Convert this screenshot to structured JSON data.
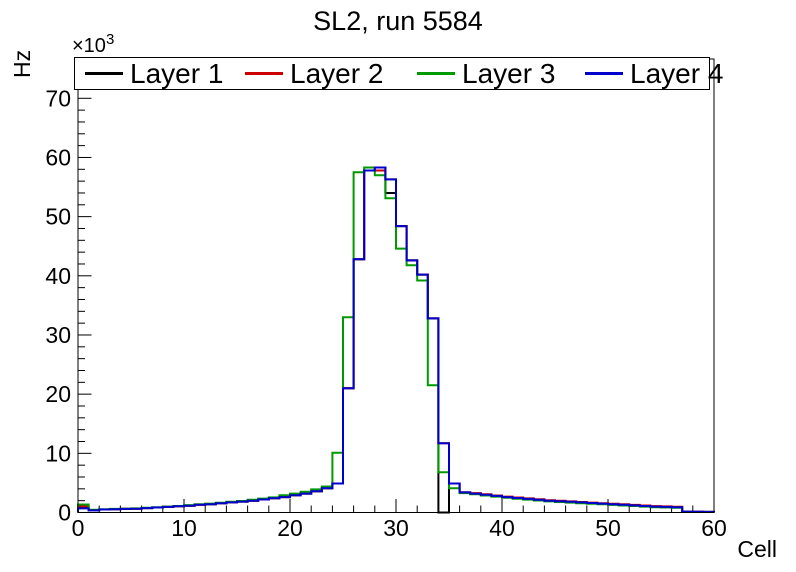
{
  "title": "SL2, run 5584",
  "axes": {
    "y_title": "Hz",
    "x_title": "Cell",
    "y_multiplier_base": "×10",
    "y_multiplier_exp": "3"
  },
  "legend": {
    "items": [
      {
        "label": "Layer 1",
        "color": "#000000"
      },
      {
        "label": "Layer 2",
        "color": "#cc0000"
      },
      {
        "label": "Layer 3",
        "color": "#009900"
      },
      {
        "label": "Layer 4",
        "color": "#0000cc"
      }
    ]
  },
  "chart_data": {
    "type": "step-histogram",
    "title": "SL2, run 5584",
    "xlabel": "Cell",
    "ylabel": "Hz",
    "xlim": [
      0,
      60
    ],
    "ylim": [
      0,
      76640
    ],
    "bin_width": 1,
    "grid": false,
    "legend_position": "top",
    "x_tick_values": [
      0,
      10,
      20,
      30,
      40,
      50,
      60
    ],
    "x_tick_labels": [
      "0",
      "10",
      "20",
      "30",
      "40",
      "50",
      "60"
    ],
    "x_minor_step": 2,
    "y_tick_values": [
      0,
      10000,
      20000,
      30000,
      40000,
      50000,
      60000,
      70000
    ],
    "y_tick_labels": [
      "0",
      "10",
      "20",
      "30",
      "40",
      "50",
      "60",
      "70"
    ],
    "y_minor_step": 2000,
    "series": [
      {
        "name": "Layer 1",
        "color": "#000000",
        "values": [
          1000,
          400,
          500,
          550,
          600,
          650,
          750,
          850,
          950,
          1050,
          1150,
          1300,
          1400,
          1550,
          1700,
          1850,
          2000,
          2200,
          2400,
          2600,
          2900,
          3200,
          3600,
          4100,
          4900,
          21000,
          42800,
          57800,
          58300,
          54000,
          48400,
          42600,
          40200,
          32800,
          0,
          4900,
          3400,
          3200,
          3000,
          2800,
          2600,
          2450,
          2300,
          2150,
          2000,
          1900,
          1800,
          1700,
          1600,
          1500,
          1400,
          1300,
          1200,
          1100,
          1000,
          950,
          900,
          150,
          120,
          100
        ]
      },
      {
        "name": "Layer 2",
        "color": "#cc0000",
        "values": [
          1050,
          400,
          500,
          550,
          600,
          650,
          750,
          850,
          950,
          1050,
          1150,
          1300,
          1400,
          1550,
          1700,
          1850,
          2000,
          2200,
          2400,
          2600,
          2900,
          3200,
          3600,
          4100,
          4900,
          21000,
          42800,
          57800,
          57800,
          56300,
          48400,
          42600,
          40200,
          32800,
          11700,
          4900,
          3400,
          3280,
          3080,
          2880,
          2680,
          2530,
          2380,
          2230,
          2080,
          1980,
          1880,
          1780,
          1680,
          1580,
          1480,
          1380,
          1280,
          1180,
          1080,
          1030,
          980,
          150,
          120,
          100
        ]
      },
      {
        "name": "Layer 3",
        "color": "#009900",
        "values": [
          1350,
          450,
          550,
          600,
          650,
          700,
          800,
          900,
          1000,
          1100,
          1250,
          1400,
          1500,
          1650,
          1800,
          1950,
          2150,
          2350,
          2550,
          2900,
          3200,
          3500,
          3900,
          4400,
          10100,
          33000,
          57500,
          58300,
          57000,
          53100,
          44600,
          41800,
          39200,
          21500,
          6800,
          4100,
          3280,
          3080,
          2880,
          2680,
          2480,
          2330,
          2180,
          2030,
          1880,
          1780,
          1680,
          1580,
          1480,
          1380,
          1280,
          1180,
          1100,
          1000,
          900,
          850,
          800,
          100,
          80,
          80
        ]
      },
      {
        "name": "Layer 4",
        "color": "#0000cc",
        "values": [
          700,
          350,
          500,
          550,
          600,
          650,
          750,
          850,
          950,
          1050,
          1150,
          1300,
          1400,
          1550,
          1700,
          1850,
          2000,
          2200,
          2400,
          2600,
          2900,
          3200,
          3600,
          4100,
          4900,
          21000,
          42800,
          57800,
          58300,
          56300,
          48400,
          42600,
          40200,
          32800,
          11700,
          4900,
          3400,
          3200,
          3000,
          2800,
          2600,
          2450,
          2300,
          2150,
          2000,
          1900,
          1800,
          1700,
          1600,
          1500,
          1400,
          1300,
          1200,
          1100,
          1000,
          950,
          900,
          150,
          120,
          100
        ]
      }
    ]
  }
}
